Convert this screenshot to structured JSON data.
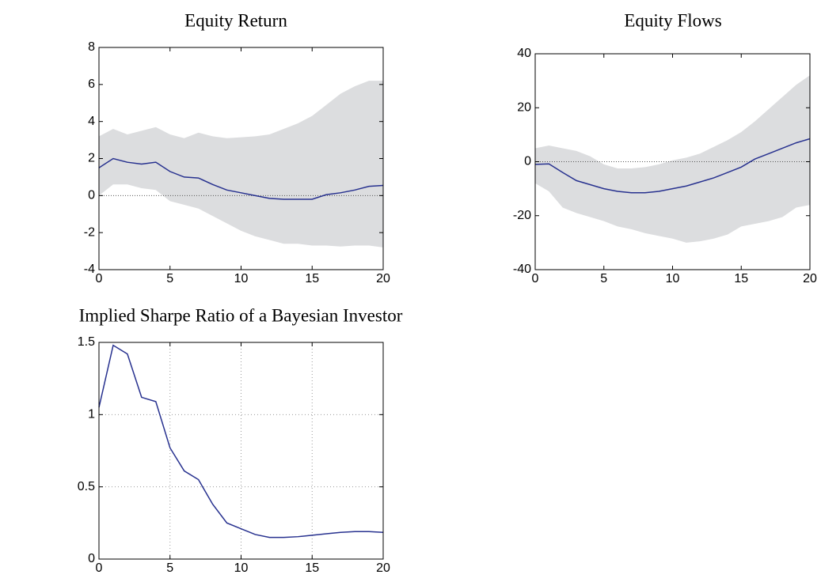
{
  "chart_data": [
    {
      "type": "line",
      "title": "Equity Return",
      "x": [
        0,
        1,
        2,
        3,
        4,
        5,
        6,
        7,
        8,
        9,
        10,
        11,
        12,
        13,
        14,
        15,
        16,
        17,
        18,
        19,
        20
      ],
      "series": [
        {
          "color": "#27318f",
          "values": [
            1.5,
            2.0,
            1.8,
            1.7,
            1.8,
            1.3,
            1.0,
            0.95,
            0.6,
            0.3,
            0.15,
            0.0,
            -0.15,
            -0.2,
            -0.2,
            -0.2,
            0.05,
            0.15,
            0.3,
            0.5,
            0.55
          ]
        }
      ],
      "band": {
        "color": "#dcdddf",
        "upper": [
          3.2,
          3.6,
          3.3,
          3.5,
          3.7,
          3.3,
          3.1,
          3.4,
          3.2,
          3.1,
          3.15,
          3.2,
          3.3,
          3.6,
          3.9,
          4.3,
          4.9,
          5.5,
          5.9,
          6.2,
          6.2
        ],
        "lower": [
          0.0,
          0.6,
          0.6,
          0.4,
          0.3,
          -0.3,
          -0.5,
          -0.7,
          -1.1,
          -1.5,
          -1.9,
          -2.2,
          -2.4,
          -2.6,
          -2.6,
          -2.7,
          -2.7,
          -2.75,
          -2.7,
          -2.7,
          -2.8
        ]
      },
      "reference_line": 0,
      "xlim": [
        0,
        20
      ],
      "xticks": [
        0,
        5,
        10,
        15,
        20
      ],
      "ylim": [
        -4,
        8
      ],
      "yticks": [
        -4,
        -2,
        0,
        2,
        4,
        6,
        8
      ],
      "grid": false
    },
    {
      "type": "line",
      "title": "Equity Flows",
      "x": [
        0,
        1,
        2,
        3,
        4,
        5,
        6,
        7,
        8,
        9,
        10,
        11,
        12,
        13,
        14,
        15,
        16,
        17,
        18,
        19,
        20
      ],
      "series": [
        {
          "color": "#27318f",
          "values": [
            -1,
            -0.8,
            -4,
            -7,
            -8.5,
            -10,
            -11,
            -11.5,
            -11.5,
            -11,
            -10,
            -9,
            -7.5,
            -6,
            -4,
            -2,
            1,
            3,
            5,
            7,
            8.5
          ]
        }
      ],
      "band": {
        "color": "#dcdddf",
        "upper": [
          5,
          6,
          5,
          4,
          2,
          -1,
          -2.5,
          -2.5,
          -2,
          -1,
          0.5,
          1.5,
          3,
          5.5,
          8,
          11,
          15,
          19.5,
          24,
          28.5,
          32
        ],
        "lower": [
          -8,
          -11,
          -17,
          -19,
          -20.5,
          -22,
          -24,
          -25,
          -26.5,
          -27.5,
          -28.5,
          -30,
          -29.5,
          -28.5,
          -27,
          -24,
          -23,
          -22,
          -20.5,
          -17,
          -16
        ]
      },
      "reference_line": 0,
      "xlim": [
        0,
        20
      ],
      "xticks": [
        0,
        5,
        10,
        15,
        20
      ],
      "ylim": [
        -40,
        40
      ],
      "yticks": [
        -40,
        -20,
        0,
        20,
        40
      ],
      "grid": false
    },
    {
      "type": "line",
      "title": "Implied Sharpe Ratio of a Bayesian Investor",
      "x": [
        0,
        1,
        2,
        3,
        4,
        5,
        6,
        7,
        8,
        9,
        10,
        11,
        12,
        13,
        14,
        15,
        16,
        17,
        18,
        19,
        20
      ],
      "series": [
        {
          "color": "#27318f",
          "values": [
            1.05,
            1.48,
            1.42,
            1.12,
            1.09,
            0.77,
            0.61,
            0.55,
            0.38,
            0.25,
            0.21,
            0.17,
            0.15,
            0.15,
            0.155,
            0.165,
            0.175,
            0.185,
            0.19,
            0.19,
            0.185
          ]
        }
      ],
      "xlim": [
        0,
        20
      ],
      "xticks": [
        0,
        5,
        10,
        15,
        20
      ],
      "ylim": [
        0,
        1.5
      ],
      "yticks": [
        0,
        0.5,
        1,
        1.5
      ],
      "grid": true
    }
  ]
}
